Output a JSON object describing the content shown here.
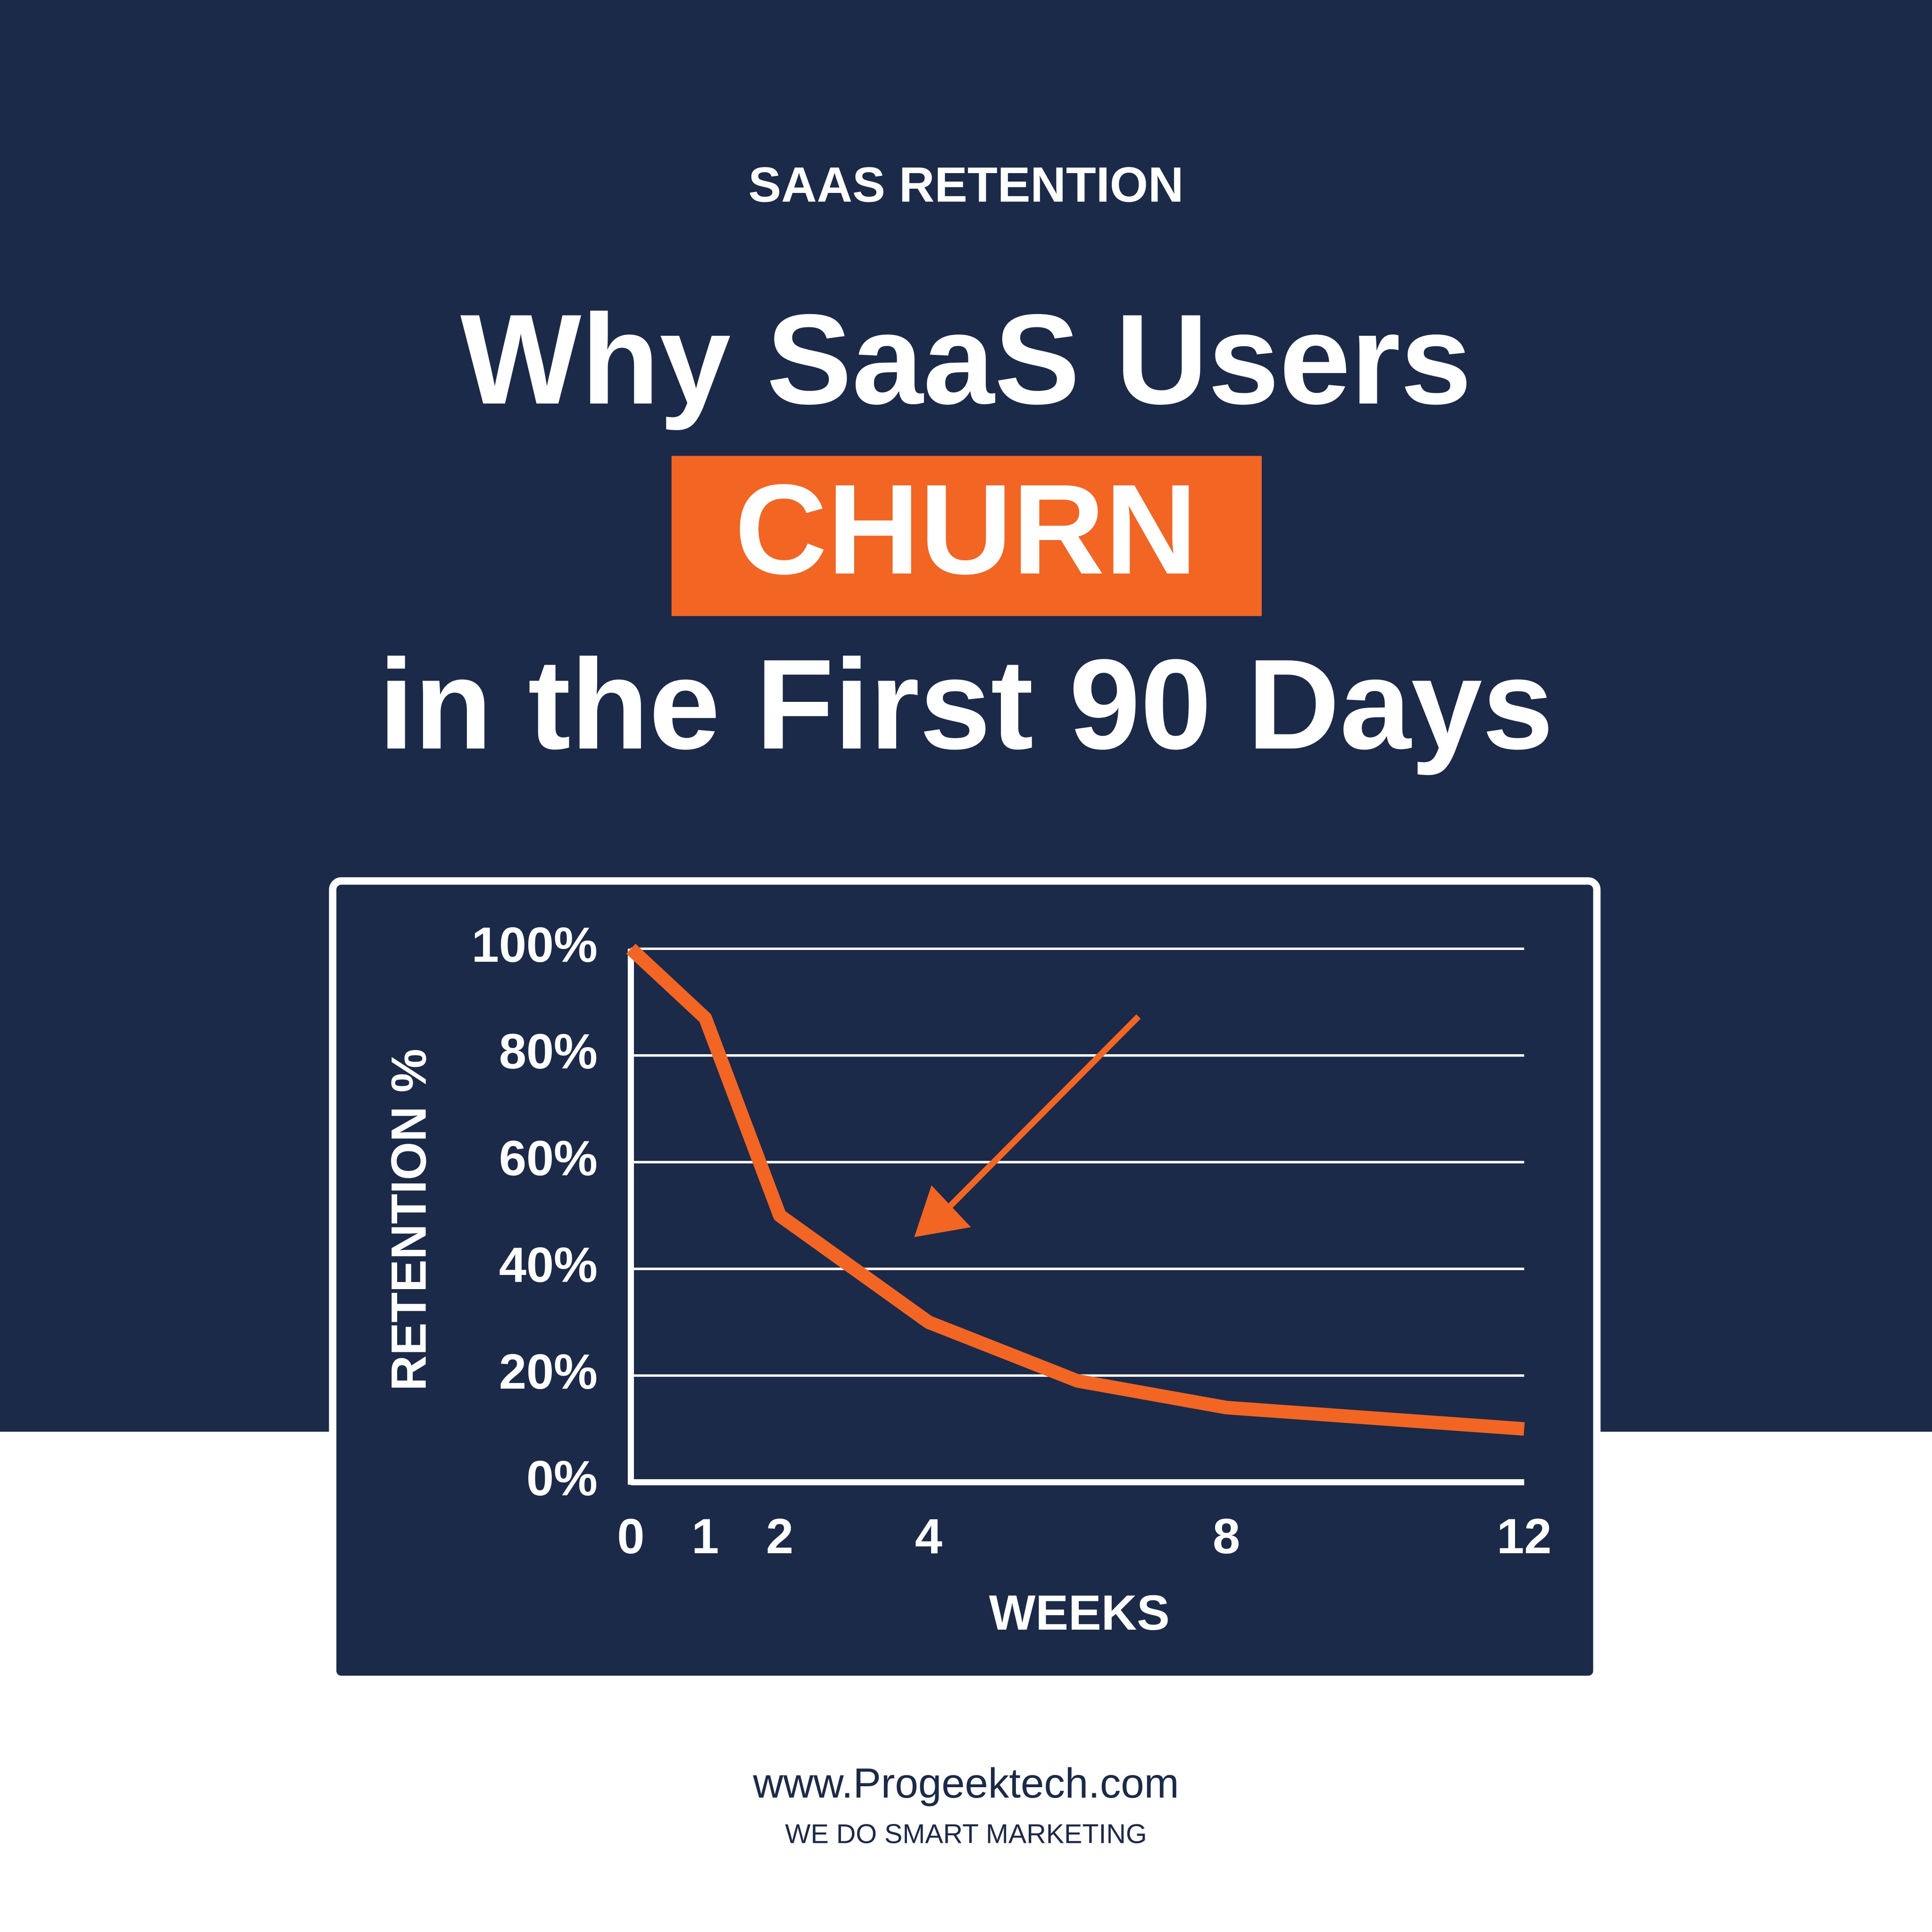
{
  "header": {
    "kicker": "SAAS RETENTION",
    "title_line1": "Why SaaS Users",
    "highlight": "CHURN",
    "title_line2": "in the First 90 Days"
  },
  "chart_data": {
    "type": "line",
    "x_label": "WEEKS",
    "y_label": "RETENTION %",
    "x": [
      0,
      1,
      2,
      4,
      6,
      8,
      12
    ],
    "values": [
      100,
      87,
      50,
      30,
      19,
      14,
      10
    ],
    "color": "#f26522",
    "xlim": [
      0,
      12
    ],
    "xticks": [
      0,
      1,
      2,
      4,
      8,
      12
    ],
    "ylim": [
      0,
      100
    ],
    "yticks": [
      {
        "value": 0,
        "label": "0%"
      },
      {
        "value": 20,
        "label": "20%"
      },
      {
        "value": 40,
        "label": "40%"
      },
      {
        "value": 60,
        "label": "60%"
      },
      {
        "value": 80,
        "label": "80%"
      },
      {
        "value": 100,
        "label": "100%"
      }
    ],
    "grid": true
  },
  "footer": {
    "url": "www.Progeektech.com",
    "tagline": "WE DO SMART MARKETING"
  }
}
